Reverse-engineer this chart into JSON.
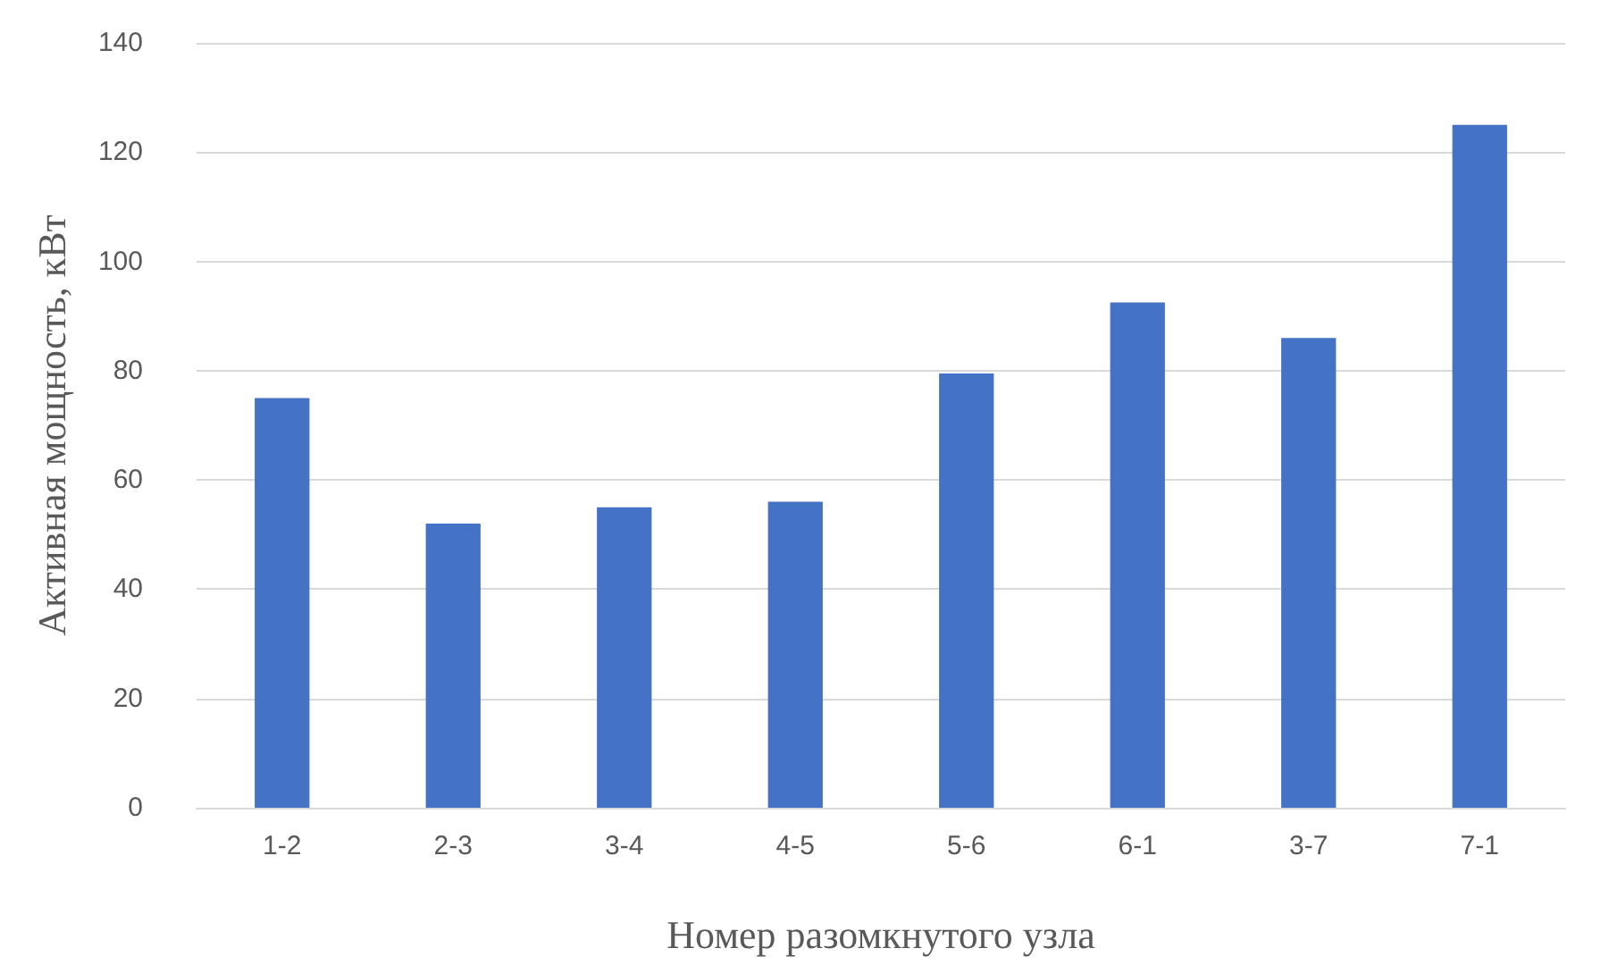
{
  "chart_data": {
    "type": "bar",
    "xlabel": "Номер разомкнутого узла",
    "ylabel": "Активная мощность, кВт",
    "categories": [
      "1-2",
      "2-3",
      "3-4",
      "4-5",
      "5-6",
      "6-1",
      "3-7",
      "7-1"
    ],
    "values": [
      75,
      52,
      55,
      56,
      79.5,
      92.5,
      86,
      125
    ],
    "color": "#4472c4",
    "ylim": [
      0,
      140
    ],
    "yticks": [
      0,
      20,
      40,
      60,
      80,
      100,
      120,
      140
    ],
    "grid": "y"
  }
}
